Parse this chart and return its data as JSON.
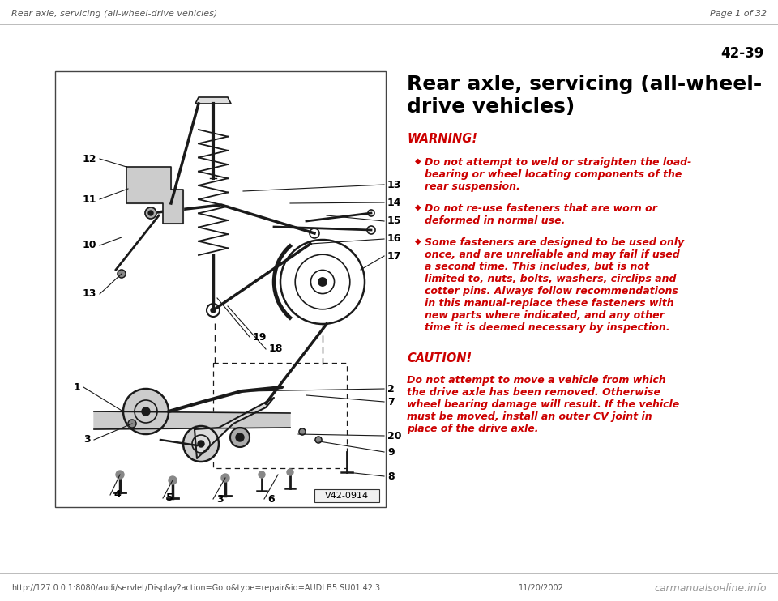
{
  "bg_color": "#ffffff",
  "header_left": "Rear axle, servicing (all-wheel-drive vehicles)",
  "header_right": "Page 1 of 32",
  "page_number": "42-39",
  "title_line1": "Rear axle, servicing (all-wheel-",
  "title_line2": "drive vehicles)",
  "warning_label": "WARNING!",
  "bullet1_line1": "Do not attempt to weld or straighten the load-",
  "bullet1_line2": "bearing or wheel locating components of the",
  "bullet1_line3": "rear suspension.",
  "bullet2_line1": "Do not re-use fasteners that are worn or",
  "bullet2_line2": "deformed in normal use.",
  "bullet3_line1": "Some fasteners are designed to be used only",
  "bullet3_line2": "once, and are unreliable and may fail if used",
  "bullet3_line3": "a second time. This includes, but is not",
  "bullet3_line4": "limited to, nuts, bolts, washers, circlips and",
  "bullet3_line5": "cotter pins. Always follow recommendations",
  "bullet3_line6": "in this manual-replace these fasteners with",
  "bullet3_line7": "new parts where indicated, and any other",
  "bullet3_line8": "time it is deemed necessary by inspection.",
  "caution_label": "CAUTION!",
  "caution_line1": "Do not attempt to move a vehicle from which",
  "caution_line2": "the drive axle has been removed. Otherwise",
  "caution_line3": "wheel bearing damage will result. If the vehicle",
  "caution_line4": "must be moved, install an outer CV joint in",
  "caution_line5": "place of the drive axle.",
  "footer_url": "http://127.0.0.1:8080/audi/servlet/Display?action=Goto&type=repair&id=AUDI.B5.SU01.42.3",
  "footer_date": "11/20/2002",
  "image_label": "V42-0914",
  "red_color": "#cc0000",
  "black_color": "#000000",
  "line_color": "#1a1a1a",
  "gray_text": "#555555"
}
